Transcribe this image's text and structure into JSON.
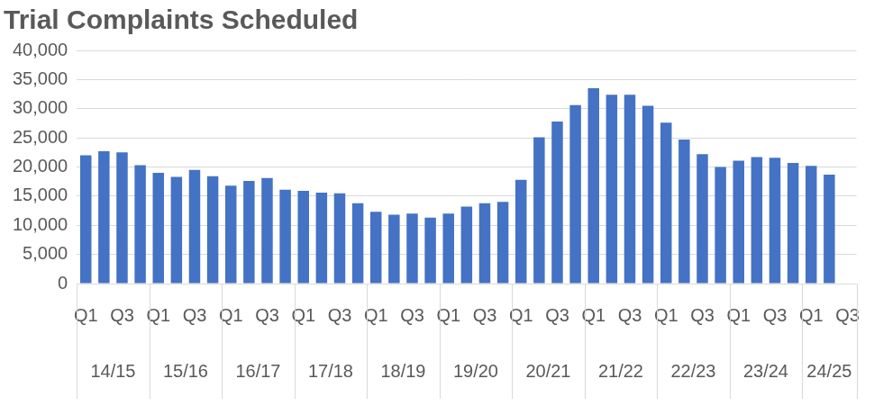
{
  "chart_data": {
    "type": "bar",
    "title": "Trial Complaints Scheduled",
    "categories": [
      "Q1",
      null,
      "Q3",
      null,
      "Q1",
      null,
      "Q3",
      null,
      "Q1",
      null,
      "Q3",
      null,
      "Q1",
      null,
      "Q3",
      null,
      "Q1",
      null,
      "Q3",
      null,
      "Q1",
      null,
      "Q3",
      null,
      "Q1",
      null,
      "Q3",
      null,
      "Q1",
      null,
      "Q3",
      null,
      "Q1",
      null,
      "Q3",
      null,
      "Q1",
      null,
      "Q3",
      null,
      "Q1",
      null,
      "Q3"
    ],
    "groups": [
      "14/15",
      "14/15",
      "14/15",
      "14/15",
      "15/16",
      "15/16",
      "15/16",
      "15/16",
      "16/17",
      "16/17",
      "16/17",
      "16/17",
      "17/18",
      "17/18",
      "17/18",
      "17/18",
      "18/19",
      "18/19",
      "18/19",
      "18/19",
      "19/20",
      "19/20",
      "19/20",
      "19/20",
      "20/21",
      "20/21",
      "20/21",
      "20/21",
      "21/22",
      "21/22",
      "21/22",
      "21/22",
      "22/23",
      "22/23",
      "22/23",
      "22/23",
      "23/24",
      "23/24",
      "23/24",
      "23/24",
      "24/25",
      "24/25",
      "24/25"
    ],
    "values": [
      22000,
      22700,
      22500,
      20300,
      19000,
      18300,
      19500,
      18400,
      16800,
      17600,
      18100,
      16100,
      15900,
      15600,
      15500,
      13800,
      12300,
      11800,
      12000,
      11300,
      12000,
      13200,
      13800,
      14000,
      17800,
      25100,
      27800,
      30600,
      33500,
      32400,
      32400,
      30500,
      27600,
      24700,
      22200,
      20000,
      21100,
      21700,
      21600,
      20700,
      20200,
      18700,
      null
    ],
    "color": "#4472c4",
    "ylim": [
      0,
      40000
    ],
    "yticks": [
      0,
      {
        "value": 5000,
        "label": "5,000"
      },
      {
        "value": 10000,
        "label": "10,000"
      },
      {
        "value": 15000,
        "label": "15,000"
      },
      {
        "value": 20000,
        "label": "20,000"
      },
      {
        "value": 25000,
        "label": "25,000"
      },
      {
        "value": 30000,
        "label": "30,000"
      },
      {
        "value": 35000,
        "label": "35,000"
      },
      {
        "value": 40000,
        "label": "40,000"
      }
    ],
    "grid": true
  }
}
